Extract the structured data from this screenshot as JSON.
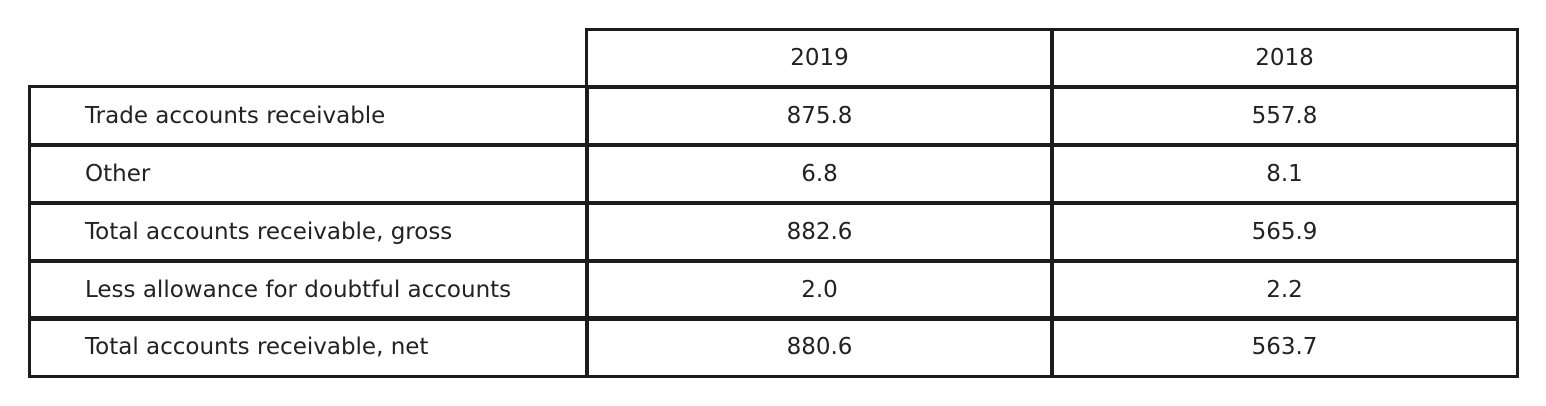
{
  "table": {
    "columns": [
      "2019",
      "2018"
    ],
    "rows": [
      {
        "label": "Trade accounts receivable",
        "values": [
          "875.8",
          "557.8"
        ]
      },
      {
        "label": "Other",
        "values": [
          "6.8",
          "8.1"
        ]
      },
      {
        "label": "Total accounts receivable, gross",
        "values": [
          "882.6",
          "565.9"
        ]
      },
      {
        "label": "Less allowance for doubtful accounts",
        "values": [
          "2.0",
          "2.2"
        ]
      },
      {
        "label": "Total accounts receivable, net",
        "values": [
          "880.6",
          "563.7"
        ]
      }
    ]
  }
}
